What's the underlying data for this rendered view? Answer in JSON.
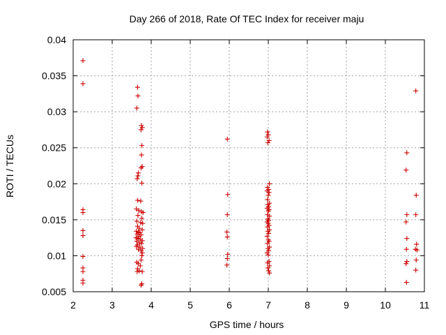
{
  "chart_data": {
    "type": "scatter",
    "title": "Day 266 of 2018, Rate Of TEC Index for receiver maju",
    "xlabel": "GPS time / hours",
    "ylabel": "ROTI / TECUs",
    "xlim": [
      2,
      11
    ],
    "ylim": [
      0.005,
      0.04
    ],
    "xticks": [
      "2",
      "3",
      "4",
      "5",
      "6",
      "7",
      "8",
      "9",
      "10",
      "11"
    ],
    "yticks": [
      "0.005",
      "0.01",
      "0.015",
      "0.02",
      "0.025",
      "0.03",
      "0.035",
      "0.04"
    ],
    "grid": true,
    "marker": "+",
    "series": [
      {
        "name": "ROTI",
        "color": "#cc0000",
        "points": [
          [
            2.25,
            0.0371
          ],
          [
            2.25,
            0.0339
          ],
          [
            2.25,
            0.0164
          ],
          [
            2.25,
            0.016
          ],
          [
            2.25,
            0.0135
          ],
          [
            2.25,
            0.0128
          ],
          [
            2.25,
            0.0099
          ],
          [
            2.25,
            0.0083
          ],
          [
            2.25,
            0.0078
          ],
          [
            2.25,
            0.0066
          ],
          [
            2.25,
            0.0062
          ],
          [
            3.65,
            0.0334
          ],
          [
            3.66,
            0.0322
          ],
          [
            3.63,
            0.0305
          ],
          [
            3.75,
            0.0281
          ],
          [
            3.77,
            0.0278
          ],
          [
            3.74,
            0.0275
          ],
          [
            3.76,
            0.0253
          ],
          [
            3.75,
            0.024
          ],
          [
            3.77,
            0.0224
          ],
          [
            3.74,
            0.0222
          ],
          [
            3.67,
            0.0215
          ],
          [
            3.66,
            0.0211
          ],
          [
            3.64,
            0.0207
          ],
          [
            3.76,
            0.0201
          ],
          [
            3.65,
            0.0177
          ],
          [
            3.73,
            0.0176
          ],
          [
            3.62,
            0.0165
          ],
          [
            3.68,
            0.0163
          ],
          [
            3.75,
            0.0161
          ],
          [
            3.79,
            0.016
          ],
          [
            3.66,
            0.0156
          ],
          [
            3.76,
            0.0152
          ],
          [
            3.63,
            0.0148
          ],
          [
            3.73,
            0.0146
          ],
          [
            3.78,
            0.0145
          ],
          [
            3.65,
            0.0141
          ],
          [
            3.69,
            0.0138
          ],
          [
            3.77,
            0.0136
          ],
          [
            3.62,
            0.0134
          ],
          [
            3.67,
            0.0133
          ],
          [
            3.71,
            0.0132
          ],
          [
            3.64,
            0.013
          ],
          [
            3.74,
            0.0129
          ],
          [
            3.68,
            0.0127
          ],
          [
            3.61,
            0.0125
          ],
          [
            3.66,
            0.0124
          ],
          [
            3.72,
            0.0123
          ],
          [
            3.77,
            0.0121
          ],
          [
            3.63,
            0.012
          ],
          [
            3.69,
            0.0118
          ],
          [
            3.75,
            0.0117
          ],
          [
            3.65,
            0.0115
          ],
          [
            3.62,
            0.0113
          ],
          [
            3.71,
            0.0112
          ],
          [
            3.78,
            0.011
          ],
          [
            3.67,
            0.0109
          ],
          [
            3.74,
            0.0107
          ],
          [
            3.77,
            0.0104
          ],
          [
            3.76,
            0.01
          ],
          [
            3.74,
            0.0094
          ],
          [
            3.63,
            0.0091
          ],
          [
            3.67,
            0.0089
          ],
          [
            3.72,
            0.0086
          ],
          [
            3.65,
            0.0082
          ],
          [
            3.64,
            0.0078
          ],
          [
            3.69,
            0.0079
          ],
          [
            3.77,
            0.0078
          ],
          [
            3.76,
            0.0061
          ],
          [
            3.74,
            0.0059
          ],
          [
            5.95,
            0.0262
          ],
          [
            5.96,
            0.0185
          ],
          [
            5.95,
            0.0157
          ],
          [
            5.94,
            0.0133
          ],
          [
            5.95,
            0.0126
          ],
          [
            5.96,
            0.0102
          ],
          [
            5.95,
            0.0096
          ],
          [
            5.94,
            0.0087
          ],
          [
            6.98,
            0.0272
          ],
          [
            7.0,
            0.0268
          ],
          [
            6.97,
            0.0265
          ],
          [
            7.02,
            0.026
          ],
          [
            6.99,
            0.0257
          ],
          [
            7.03,
            0.02
          ],
          [
            6.98,
            0.0195
          ],
          [
            7.01,
            0.0192
          ],
          [
            6.97,
            0.019
          ],
          [
            7.02,
            0.0188
          ],
          [
            7.0,
            0.0184
          ],
          [
            6.98,
            0.0178
          ],
          [
            7.03,
            0.0173
          ],
          [
            6.99,
            0.0171
          ],
          [
            7.01,
            0.0168
          ],
          [
            6.97,
            0.0166
          ],
          [
            7.02,
            0.0164
          ],
          [
            7.0,
            0.0162
          ],
          [
            6.98,
            0.0157
          ],
          [
            7.03,
            0.0155
          ],
          [
            6.99,
            0.0151
          ],
          [
            7.01,
            0.0149
          ],
          [
            6.97,
            0.0147
          ],
          [
            7.0,
            0.0145
          ],
          [
            7.02,
            0.0142
          ],
          [
            6.98,
            0.014
          ],
          [
            7.03,
            0.0136
          ],
          [
            6.99,
            0.0134
          ],
          [
            7.01,
            0.0131
          ],
          [
            6.97,
            0.0127
          ],
          [
            7.0,
            0.0122
          ],
          [
            7.02,
            0.012
          ],
          [
            6.98,
            0.0117
          ],
          [
            7.03,
            0.0112
          ],
          [
            6.99,
            0.011
          ],
          [
            7.01,
            0.0107
          ],
          [
            6.97,
            0.0104
          ],
          [
            7.0,
            0.0101
          ],
          [
            7.02,
            0.0092
          ],
          [
            6.98,
            0.009
          ],
          [
            7.03,
            0.0086
          ],
          [
            6.99,
            0.0083
          ],
          [
            7.01,
            0.0079
          ],
          [
            7.03,
            0.0076
          ],
          [
            10.55,
            0.0243
          ],
          [
            10.53,
            0.0219
          ],
          [
            10.55,
            0.0157
          ],
          [
            10.53,
            0.0147
          ],
          [
            10.55,
            0.0124
          ],
          [
            10.54,
            0.0109
          ],
          [
            10.55,
            0.0092
          ],
          [
            10.53,
            0.0089
          ],
          [
            10.54,
            0.0063
          ],
          [
            10.78,
            0.0329
          ],
          [
            10.79,
            0.0184
          ],
          [
            10.78,
            0.0157
          ],
          [
            10.8,
            0.0116
          ],
          [
            10.77,
            0.0109
          ],
          [
            10.81,
            0.0108
          ],
          [
            10.79,
            0.0094
          ],
          [
            10.78,
            0.008
          ]
        ]
      }
    ]
  }
}
